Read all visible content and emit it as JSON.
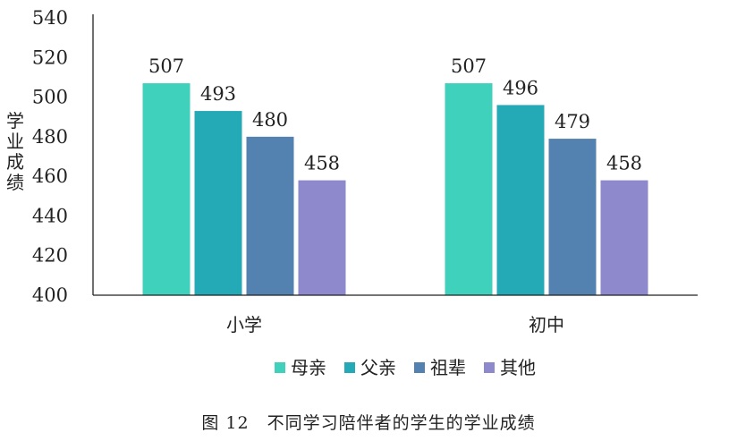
{
  "chart_data": {
    "type": "bar",
    "ylabel": "学业成绩",
    "ylim": [
      400,
      540
    ],
    "yticks": [
      400,
      420,
      440,
      460,
      480,
      500,
      520,
      540
    ],
    "categories": [
      "小学",
      "初中"
    ],
    "series": [
      {
        "name": "母亲",
        "values": [
          507,
          507
        ],
        "color": "#3fd1bb"
      },
      {
        "name": "父亲",
        "values": [
          493,
          496
        ],
        "color": "#24a9b7"
      },
      {
        "name": "祖辈",
        "values": [
          480,
          479
        ],
        "color": "#5382b0"
      },
      {
        "name": "其他",
        "values": [
          458,
          458
        ],
        "color": "#8e89cc"
      }
    ],
    "legend_position": "bottom",
    "grid": false
  },
  "caption": "图 12　不同学习陪伴者的学生的学业成绩"
}
